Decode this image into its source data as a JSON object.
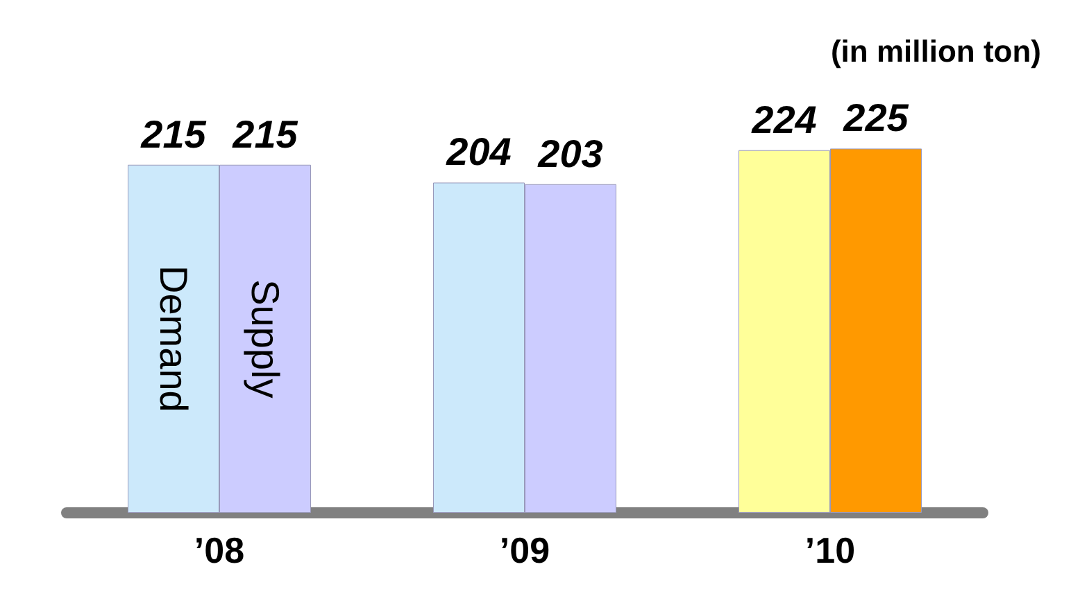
{
  "chart_data": {
    "type": "bar",
    "categories": [
      "’08",
      "’09",
      "’10"
    ],
    "series": [
      {
        "name": "Demand",
        "colors": [
          "#cce9fb",
          "#cce9fb",
          "#ffff99"
        ],
        "values": [
          215,
          204,
          224
        ]
      },
      {
        "name": "Supply",
        "colors": [
          "#ccccff",
          "#ccccff",
          "#ff9900"
        ],
        "values": [
          215,
          203,
          225
        ]
      }
    ],
    "data_labels": true,
    "legend": false,
    "annotations": [
      "(in million ton)"
    ]
  }
}
